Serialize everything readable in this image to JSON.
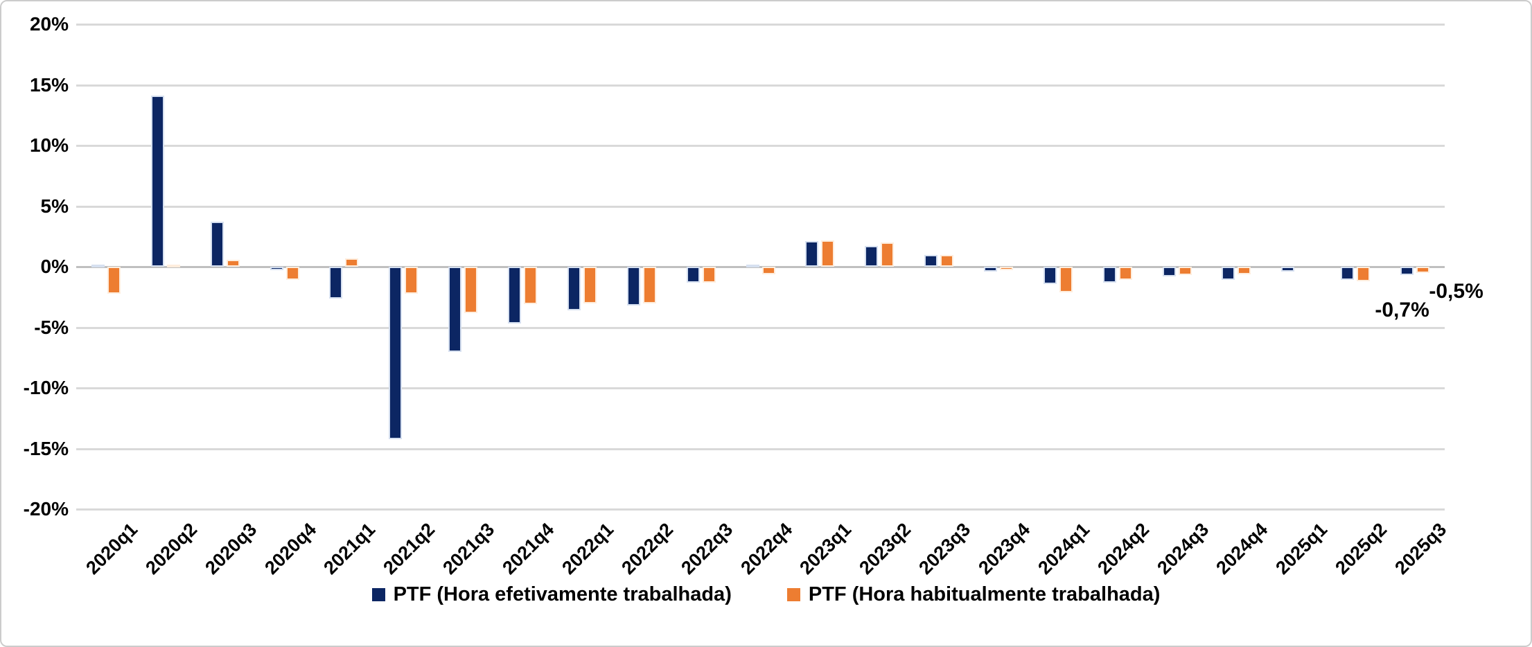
{
  "chart": {
    "y_axis_tick_labels": [
      "20%",
      "15%",
      "10%",
      "5%",
      "0%",
      "-5%",
      "-10%",
      "-15%",
      "-20%"
    ],
    "colors": {
      "series_navy": "#0C2663",
      "series_orange": "#ED7D31",
      "gridline": "#D9D9D9",
      "zero_line": "#BFBFBF",
      "text": "#000000"
    }
  },
  "chart_data": {
    "type": "bar",
    "title": "",
    "xlabel": "",
    "ylabel": "",
    "ylim": [
      -20,
      20
    ],
    "y_tick_step": 5,
    "y_tick_format": "percent",
    "grid": true,
    "legend_position": "bottom",
    "categories": [
      "2020q1",
      "2020q2",
      "2020q3",
      "2020q4",
      "2021q1",
      "2021q2",
      "2021q3",
      "2021q4",
      "2022q1",
      "2022q2",
      "2022q3",
      "2022q4",
      "2023q1",
      "2023q2",
      "2023q3",
      "2023q4",
      "2024q1",
      "2024q2",
      "2024q3",
      "2024q4",
      "2025q1",
      "2025q2",
      "2025q3"
    ],
    "series": [
      {
        "name": "PTF (Hora efetivamente trabalhada)",
        "color": "#0C2663",
        "values": [
          0.2,
          14.1,
          3.7,
          -0.3,
          -2.6,
          -14.2,
          -7.0,
          -4.7,
          -3.6,
          -3.2,
          -1.3,
          0.2,
          2.1,
          1.7,
          1.0,
          -0.4,
          -1.4,
          -1.3,
          -0.8,
          -1.1,
          -0.4,
          -1.1,
          -0.7
        ]
      },
      {
        "name": "PTF (Hora habitualmente trabalhada)",
        "color": "#ED7D31",
        "values": [
          -2.2,
          0.2,
          0.6,
          -1.1,
          0.7,
          -2.2,
          -3.8,
          -3.1,
          -3.0,
          -3.0,
          -1.3,
          -0.6,
          2.2,
          2.0,
          1.0,
          -0.3,
          -2.1,
          -1.1,
          -0.7,
          -0.6,
          0.0,
          -1.2,
          -0.5
        ]
      }
    ],
    "annotations": [
      {
        "text": "-0,7%",
        "series": 0,
        "category_index": 22
      },
      {
        "text": "-0,5%",
        "series": 1,
        "category_index": 22
      }
    ]
  }
}
